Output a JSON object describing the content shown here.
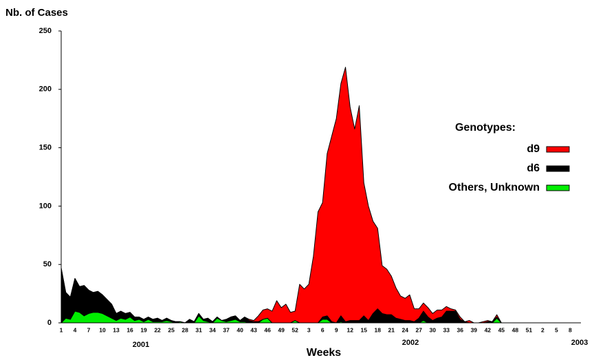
{
  "chart_data": {
    "type": "area",
    "y_label": "Nb. of Cases",
    "x_label": "Weeks",
    "annotations": [
      "2001",
      "2002",
      "2003"
    ],
    "legend_title": "Genotypes:",
    "categories": [
      "1",
      null,
      null,
      "4",
      null,
      null,
      "7",
      null,
      null,
      "10",
      null,
      null,
      "13",
      null,
      null,
      "16",
      null,
      null,
      "19",
      null,
      null,
      "22",
      null,
      null,
      "25",
      null,
      null,
      "28",
      null,
      null,
      "31",
      null,
      null,
      "34",
      null,
      null,
      "37",
      null,
      null,
      "40",
      null,
      null,
      "43",
      null,
      null,
      "46",
      null,
      null,
      "49",
      null,
      null,
      "52",
      null,
      null,
      "3",
      null,
      null,
      "6",
      null,
      null,
      "9",
      null,
      null,
      "12",
      null,
      null,
      "15",
      null,
      null,
      "18",
      null,
      null,
      "21",
      null,
      null,
      "24",
      null,
      null,
      "27",
      null,
      null,
      "30",
      null,
      null,
      "33",
      null,
      null,
      "36",
      null,
      null,
      "39",
      null,
      null,
      "42",
      null,
      null,
      "45",
      null,
      null,
      "48",
      null,
      null,
      "51",
      null,
      null,
      "2",
      null,
      null,
      "5",
      null,
      null,
      "8",
      null,
      null
    ],
    "series": [
      {
        "name": "d9",
        "color": "#ff0000",
        "values": [
          0,
          0,
          0,
          0,
          0,
          0,
          0,
          0,
          0,
          0,
          0,
          0,
          0,
          0,
          0,
          0,
          0,
          0,
          0,
          0,
          0,
          0,
          0,
          0,
          0,
          0,
          0,
          0,
          0,
          0,
          0,
          0,
          0,
          0,
          0,
          0,
          0,
          0,
          0,
          0,
          0,
          1,
          1,
          5,
          8,
          8,
          10,
          19,
          13,
          16,
          9,
          8,
          33,
          29,
          33,
          57,
          95,
          98,
          139,
          159,
          175,
          199,
          218,
          183,
          164,
          184,
          114,
          98,
          79,
          69,
          41,
          39,
          33,
          26,
          20,
          19,
          22,
          11,
          8,
          7,
          8,
          6,
          7,
          6,
          4,
          2,
          1,
          2,
          0,
          2,
          0,
          0,
          1,
          1,
          0,
          2,
          0,
          0,
          0,
          0,
          0,
          0,
          0,
          0,
          0,
          0,
          0,
          0,
          0,
          0,
          0,
          0,
          0,
          0
        ]
      },
      {
        "name": "d6",
        "color": "#000000",
        "values": [
          47,
          22,
          19,
          28,
          22,
          26,
          20,
          17,
          18,
          16,
          14,
          12,
          6,
          6,
          5,
          4,
          3,
          2,
          2,
          2,
          2,
          3,
          1,
          2,
          1,
          1,
          0,
          0,
          3,
          1,
          2,
          1,
          3,
          1,
          1,
          0,
          2,
          3,
          3,
          1,
          4,
          2,
          1,
          1,
          0,
          0,
          0,
          0,
          0,
          0,
          0,
          0,
          0,
          0,
          0,
          0,
          0,
          2,
          3,
          1,
          0,
          5,
          1,
          2,
          2,
          2,
          6,
          2,
          8,
          12,
          8,
          7,
          7,
          4,
          3,
          2,
          2,
          1,
          4,
          8,
          5,
          2,
          4,
          5,
          10,
          10,
          10,
          3,
          1,
          0,
          0,
          0,
          0,
          1,
          1,
          1,
          0,
          0,
          0,
          0,
          0,
          0,
          0,
          0,
          0,
          0,
          0,
          0,
          0,
          0,
          0,
          0,
          0,
          0
        ]
      },
      {
        "name": "Others, Unknown",
        "color": "#00ee00",
        "values": [
          0,
          4,
          3,
          10,
          9,
          6,
          8,
          9,
          9,
          8,
          6,
          4,
          2,
          4,
          3,
          5,
          2,
          3,
          1,
          3,
          1,
          1,
          1,
          2,
          1,
          0,
          1,
          0,
          0,
          0,
          6,
          2,
          1,
          0,
          4,
          2,
          1,
          2,
          3,
          1,
          1,
          0,
          0,
          0,
          3,
          4,
          0,
          0,
          0,
          0,
          0,
          2,
          0,
          0,
          0,
          0,
          0,
          3,
          3,
          0,
          0,
          1,
          0,
          0,
          0,
          0,
          0,
          0,
          0,
          0,
          0,
          0,
          0,
          0,
          0,
          0,
          0,
          0,
          0,
          2,
          0,
          0,
          0,
          0,
          0,
          0,
          0,
          0,
          0,
          0,
          0,
          0,
          0,
          0,
          0,
          4,
          0,
          0,
          0,
          0,
          0,
          0,
          0,
          0,
          0,
          0,
          0,
          0,
          0,
          0,
          0,
          0,
          0,
          0
        ]
      }
    ],
    "ylim": [
      0,
      250
    ],
    "yticks": [
      0,
      50,
      100,
      150,
      200,
      250
    ]
  }
}
